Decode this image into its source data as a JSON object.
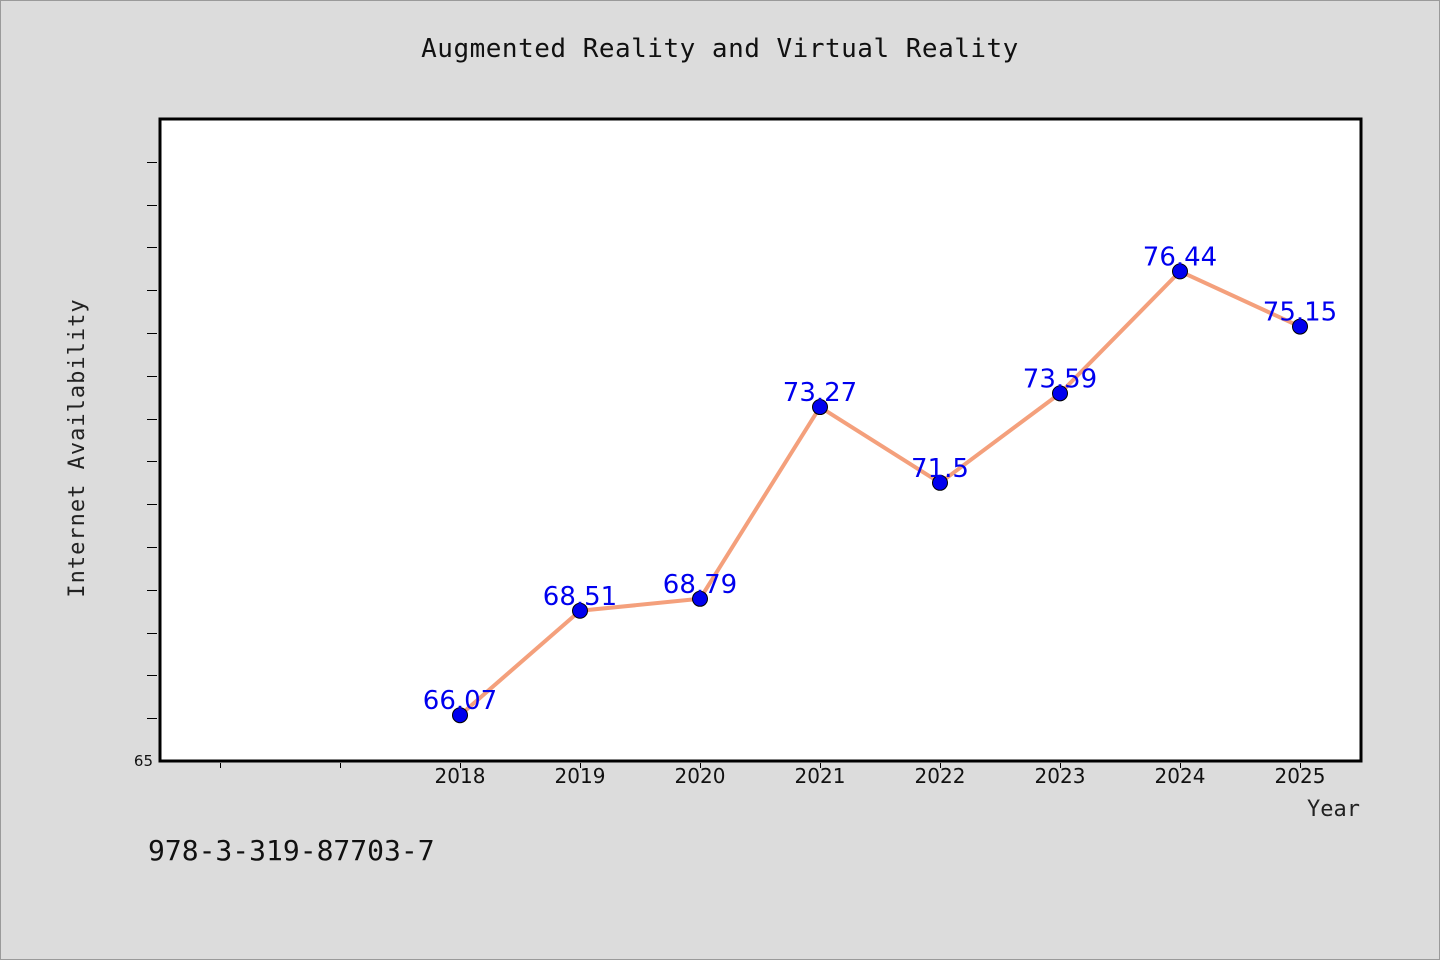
{
  "chart_data": {
    "type": "line",
    "title": "Augmented Reality and Virtual Reality",
    "xlabel": "Year",
    "ylabel": "Internet Availability",
    "categories": [
      "2018",
      "2019",
      "2020",
      "2021",
      "2022",
      "2023",
      "2024",
      "2025"
    ],
    "values": [
      66.07,
      68.51,
      68.79,
      73.27,
      71.5,
      73.59,
      76.44,
      75.15
    ],
    "value_labels": [
      "66.07",
      "68.51",
      "68.79",
      "73.27",
      "71.5",
      "73.59",
      "76.44",
      "75.15"
    ],
    "ylim": [
      65,
      80
    ],
    "ytick_label": "65",
    "grid": false,
    "line_color": "#f4a07c",
    "marker_color": "#0000ee",
    "label_color": "#0000ee",
    "background_color": "#dcdcdc"
  },
  "footer_text": "978-3-319-87703-7"
}
